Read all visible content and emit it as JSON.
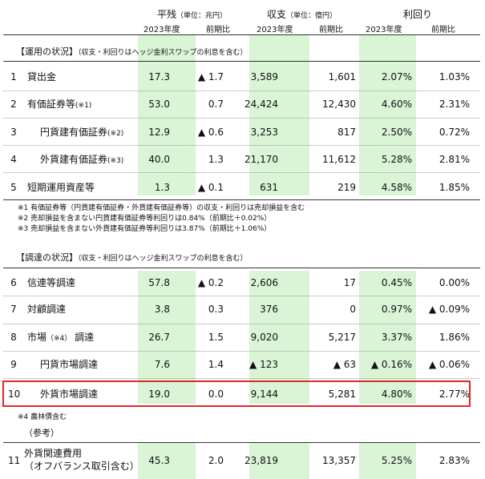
{
  "headers": {
    "balance": "平残",
    "balance_unit": "（単位：兆円）",
    "income": "収支",
    "income_unit": "（単位：億円）",
    "yield": "利回り",
    "sub": [
      "2023年度",
      "前期比",
      "2023年度",
      "前期比",
      "2023年度",
      "前期比"
    ]
  },
  "section1": {
    "title": "【運用の状況】",
    "note": "（収支・利回りはヘッジ金利スワップの利息を含む）",
    "rows": [
      {
        "no": "1",
        "label": "貸出金",
        "note": "",
        "v1": "17.3",
        "v2": "▲ 1.7",
        "v3": "3,589",
        "v4": "1,601",
        "v5": "2.07%",
        "v6": "1.03%"
      },
      {
        "no": "2",
        "label": "有価証券等",
        "note": "(※1)",
        "v1": "53.0",
        "v2": "0.7",
        "v3": "24,424",
        "v4": "12,430",
        "v5": "4.60%",
        "v6": "2.31%"
      },
      {
        "no": "3",
        "label": "円貨建有価証券",
        "note": "(※2)",
        "v1": "12.9",
        "v2": "▲ 0.6",
        "v3": "3,253",
        "v4": "817",
        "v5": "2.50%",
        "v6": "0.72%"
      },
      {
        "no": "4",
        "label": "外貨建有価証券",
        "note": "(※3)",
        "v1": "40.0",
        "v2": "1.3",
        "v3": "21,170",
        "v4": "11,612",
        "v5": "5.28%",
        "v6": "2.81%"
      },
      {
        "no": "5",
        "label": "短期運用資産等",
        "note": "",
        "v1": "1.3",
        "v2": "▲ 0.1",
        "v3": "631",
        "v4": "219",
        "v5": "4.58%",
        "v6": "1.85%"
      }
    ],
    "footnotes": [
      "※1 有価証券等（円貨建有価証券・外貨建有価証券等）の収支・利回りは売却損益を含む",
      "※2 売却損益を含まない円貨建有価証券等利回りは0.84%（前期比＋0.02%）",
      "※3 売却損益を含まない外貨建有価証券等利回りは3.87%（前期比＋1.06%）"
    ]
  },
  "section2": {
    "title": "【調達の状況】",
    "note": "（収支・利回りはヘッジ金利スワップの利息を含む）",
    "rows": [
      {
        "no": "6",
        "label": "信連等調達",
        "note": "",
        "v1": "57.8",
        "v2": "▲ 0.2",
        "v3": "2,606",
        "v4": "17",
        "v5": "0.45%",
        "v6": "0.00%"
      },
      {
        "no": "7",
        "label": "対顧調達",
        "note": "",
        "v1": "3.8",
        "v2": "0.3",
        "v3": "376",
        "v4": "0",
        "v5": "0.97%",
        "v6": "▲ 0.09%"
      },
      {
        "no": "8",
        "label": "市場",
        "note": "（※4）",
        "label_after": " 調達",
        "v1": "26.7",
        "v2": "1.5",
        "v3": "9,020",
        "v4": "5,217",
        "v5": "3.37%",
        "v6": "1.86%"
      },
      {
        "no": "9",
        "label": "円貨市場調達",
        "note": "",
        "v1": "7.6",
        "v2": "1.4",
        "v3": "▲ 123",
        "v4": "▲ 63",
        "v5": "▲ 0.16%",
        "v6": "▲ 0.06%"
      },
      {
        "no": "10",
        "label": "外貨市場調達",
        "note": "",
        "v1": "19.0",
        "v2": "0.0",
        "v3": "9,144",
        "v4": "5,281",
        "v5": "4.80%",
        "v6": "2.77%"
      }
    ],
    "footnote": "※4 農林債含む"
  },
  "reference": {
    "title": "（参考）",
    "row": {
      "no": "11",
      "label_line1": "外貨関連費用",
      "label_line2": "（オフバランス取引含む）",
      "v1": "45.3",
      "v2": "2.0",
      "v3": "23,819",
      "v4": "13,357",
      "v5": "5.25%",
      "v6": "2.83%"
    }
  },
  "colors": {
    "green": "#d9f5d6",
    "highlight": "#e0272b"
  }
}
